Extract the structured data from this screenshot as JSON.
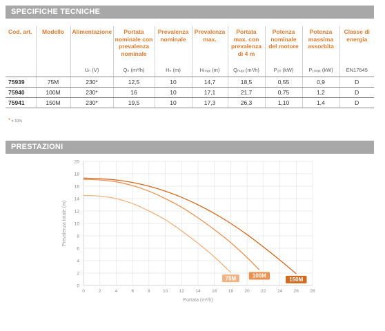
{
  "sections": {
    "specs_title": "SPECIFICHE TECNICHE",
    "perf_title": "PRESTAZIONI"
  },
  "table": {
    "headers": [
      "Cod. art.",
      "Modello",
      "Alimentazione",
      "Portata nominale con prevalenza nominale",
      "Prevalenza nominale",
      "Prevalenza max.",
      "Portata max. con prevalenza di 4 m",
      "Potenza nominale del motore",
      "Potenza massima assorbita",
      "Classe di energia"
    ],
    "units": [
      "",
      "",
      "Uₙ (V)",
      "Qₙ (m³/h)",
      "Hₙ (m)",
      "Hₘₐₓ (m)",
      "Qₘₐₓ (m³/h)",
      "P₂ₙ (kW)",
      "P₁ₘₐₓ (kW)",
      "EN17645"
    ],
    "rows": [
      [
        "75939",
        "75M",
        "230*",
        "12,5",
        "10",
        "14,7",
        "18,5",
        "0,55",
        "0,9",
        "D"
      ],
      [
        "75940",
        "100M",
        "230*",
        "16",
        "10",
        "17,1",
        "21,7",
        "0,75",
        "1,2",
        "D"
      ],
      [
        "75941",
        "150M",
        "230*",
        "19,5",
        "10",
        "17,3",
        "26,3",
        "1,10",
        "1,4",
        "D"
      ]
    ]
  },
  "footnote": {
    "star": "*",
    "text": "± 10%"
  },
  "chart_data": {
    "type": "line",
    "xlabel": "Portata (m³/h)",
    "ylabel": "Prevalenza totale (m)",
    "xlim": [
      0,
      28
    ],
    "ylim": [
      0,
      20
    ],
    "x_ticks": [
      0,
      2,
      4,
      6,
      8,
      10,
      12,
      14,
      16,
      18,
      20,
      22,
      24,
      26,
      28
    ],
    "y_ticks": [
      0,
      2,
      4,
      6,
      8,
      10,
      12,
      14,
      16,
      18,
      20
    ],
    "grid": true,
    "series": [
      {
        "name": "75M",
        "color": "#f1b281",
        "points": [
          [
            0,
            14.5
          ],
          [
            2,
            14.4
          ],
          [
            4,
            14.0
          ],
          [
            6,
            13.2
          ],
          [
            8,
            12.0
          ],
          [
            10,
            10.6
          ],
          [
            12,
            8.8
          ],
          [
            14,
            6.8
          ],
          [
            16,
            4.6
          ],
          [
            18,
            2.1
          ]
        ]
      },
      {
        "name": "100M",
        "color": "#e9914f",
        "points": [
          [
            0,
            17.1
          ],
          [
            2,
            17.0
          ],
          [
            4,
            16.7
          ],
          [
            6,
            16.1
          ],
          [
            8,
            15.2
          ],
          [
            10,
            14.0
          ],
          [
            12,
            12.6
          ],
          [
            14,
            10.9
          ],
          [
            16,
            9.0
          ],
          [
            18,
            6.9
          ],
          [
            20,
            4.5
          ],
          [
            21.5,
            2.5
          ]
        ]
      },
      {
        "name": "150M",
        "color": "#d2691e",
        "points": [
          [
            0,
            17.3
          ],
          [
            2,
            17.2
          ],
          [
            4,
            17.0
          ],
          [
            6,
            16.6
          ],
          [
            8,
            16.0
          ],
          [
            10,
            15.2
          ],
          [
            12,
            14.2
          ],
          [
            14,
            13.0
          ],
          [
            16,
            11.6
          ],
          [
            18,
            10.0
          ],
          [
            20,
            8.2
          ],
          [
            22,
            6.2
          ],
          [
            24,
            4.1
          ],
          [
            26,
            1.9
          ]
        ]
      }
    ]
  }
}
